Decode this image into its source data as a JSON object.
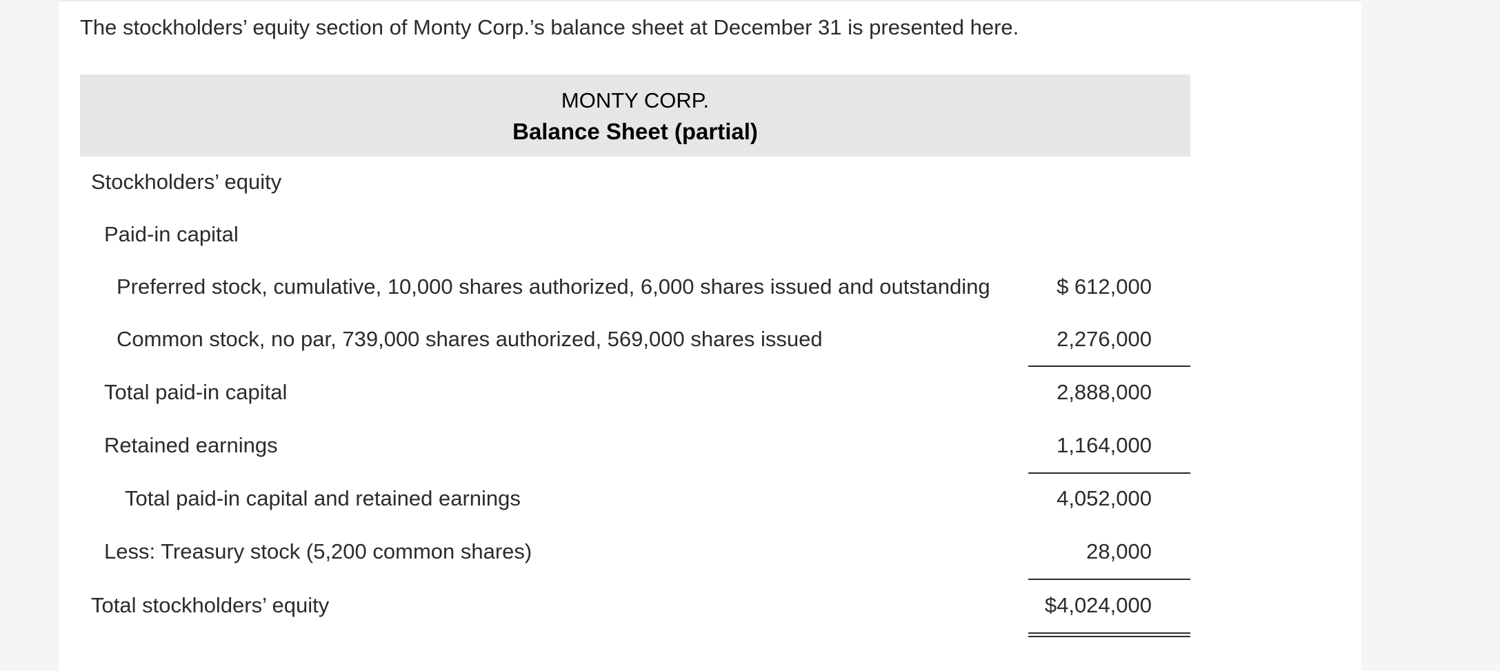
{
  "intro": "The stockholders’ equity section of Monty Corp.’s balance sheet at December 31 is presented here.",
  "header": {
    "company": "MONTY CORP.",
    "statement": "Balance Sheet (partial)"
  },
  "rows": [
    {
      "label": "Stockholders’ equity",
      "amount": ""
    },
    {
      "label": "Paid-in capital",
      "amount": ""
    },
    {
      "label": "Preferred stock, cumulative, 10,000 shares authorized, 6,000 shares issued and outstanding",
      "amount": "$ 612,000"
    },
    {
      "label": "Common stock, no par, 739,000 shares authorized, 569,000 shares issued",
      "amount": "2,276,000"
    },
    {
      "label": "Total paid-in capital",
      "amount": "2,888,000"
    },
    {
      "label": "Retained earnings",
      "amount": "1,164,000"
    },
    {
      "label": "Total paid-in capital and retained earnings",
      "amount": "4,052,000"
    },
    {
      "label": "Less: Treasury stock (5,200 common shares)",
      "amount": "28,000"
    },
    {
      "label": "Total stockholders’ equity",
      "amount": "$4,024,000"
    }
  ]
}
